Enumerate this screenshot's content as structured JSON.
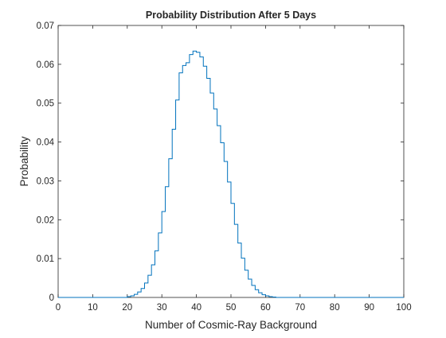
{
  "chart_data": {
    "type": "line",
    "style": "stairs",
    "title": "Probability Distribution After 5 Days",
    "xlabel": "Number of Cosmic-Ray Background",
    "ylabel": "Probability",
    "xlim": [
      0,
      100
    ],
    "ylim": [
      0,
      0.07
    ],
    "xticks": [
      "0",
      "10",
      "20",
      "30",
      "40",
      "50",
      "60",
      "70",
      "80",
      "90",
      "100"
    ],
    "yticks": [
      "0",
      "0.01",
      "0.02",
      "0.03",
      "0.04",
      "0.05",
      "0.06",
      "0.07"
    ],
    "grid": false,
    "line_color": "#0072BD",
    "axis_color": "#262626",
    "series": [
      {
        "x": [
          0,
          1,
          2,
          3,
          4,
          5,
          6,
          7,
          8,
          9,
          10,
          11,
          12,
          13,
          14,
          15,
          16,
          17,
          18,
          19,
          20,
          21,
          22,
          23,
          24,
          25,
          26,
          27,
          28,
          29,
          30,
          31,
          32,
          33,
          34,
          35,
          36,
          37,
          38,
          39,
          40,
          41,
          42,
          43,
          44,
          45,
          46,
          47,
          48,
          49,
          50,
          51,
          52,
          53,
          54,
          55,
          56,
          57,
          58,
          59,
          60,
          61,
          62,
          63,
          64,
          65,
          66,
          67,
          68,
          69,
          70,
          71,
          72,
          73,
          74,
          75,
          76,
          77,
          78,
          79,
          80,
          81,
          82,
          83,
          84,
          85,
          86,
          87,
          88,
          89,
          90,
          91,
          92,
          93,
          94,
          95,
          96,
          97,
          98,
          99,
          100
        ],
        "values": [
          0,
          0,
          0,
          0,
          0,
          0,
          0,
          0,
          0,
          0,
          0,
          0,
          0,
          0,
          0,
          0,
          0,
          0,
          0,
          0,
          0.0002,
          0.0004,
          0.0008,
          0.0014,
          0.0023,
          0.0037,
          0.0057,
          0.0084,
          0.012,
          0.0166,
          0.0221,
          0.0285,
          0.0357,
          0.0433,
          0.0508,
          0.0578,
          0.0597,
          0.0604,
          0.0625,
          0.0634,
          0.0631,
          0.0619,
          0.0595,
          0.0564,
          0.0526,
          0.0485,
          0.0442,
          0.0398,
          0.035,
          0.0297,
          0.0242,
          0.0188,
          0.014,
          0.0101,
          0.007,
          0.0047,
          0.0031,
          0.002,
          0.0012,
          0.0007,
          0.0004,
          0.0002,
          0.0001,
          0,
          0,
          0,
          0,
          0,
          0,
          0,
          0,
          0,
          0,
          0,
          0,
          0,
          0,
          0,
          0,
          0,
          0,
          0,
          0,
          0,
          0,
          0,
          0,
          0,
          0,
          0,
          0,
          0,
          0,
          0,
          0,
          0,
          0,
          0,
          0,
          0,
          0
        ]
      }
    ]
  }
}
